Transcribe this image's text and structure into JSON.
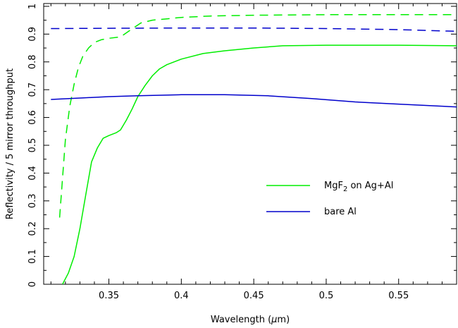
{
  "chart_data": {
    "type": "line",
    "title": "",
    "xlabel": "Wavelength (",
    "xlabel_mu": "μ",
    "xlabel_unit": "m)",
    "ylabel": "Reflectivity / 5 mirror throughput",
    "xlim": [
      0.305,
      0.59
    ],
    "ylim": [
      0,
      1.01
    ],
    "grid": false,
    "legend_position": "center-right",
    "x_ticks": [
      0.35,
      0.4,
      0.45,
      0.5,
      0.55
    ],
    "x_tick_labels": [
      "0.35",
      "0.4",
      "0.45",
      "0.5",
      "0.55"
    ],
    "y_ticks": [
      0,
      0.1,
      0.2,
      0.3,
      0.4,
      0.5,
      0.6,
      0.7,
      0.8,
      0.9,
      1
    ],
    "y_tick_labels": [
      "0",
      "0.1",
      "0.2",
      "0.3",
      "0.4",
      "0.5",
      "0.6",
      "0.7",
      "0.8",
      "0.9",
      "1"
    ],
    "legend": [
      {
        "main": "MgF",
        "sub": "2",
        "rest": " on Ag+Al",
        "color": "#00ee00"
      },
      {
        "main": "bare Al",
        "sub": "",
        "rest": "",
        "color": "#0000cc"
      }
    ],
    "series": [
      {
        "color": "#00ee00",
        "dash": true,
        "x": [
          0.316,
          0.318,
          0.32,
          0.323,
          0.326,
          0.329,
          0.332,
          0.336,
          0.34,
          0.345,
          0.35,
          0.358,
          0.365,
          0.372,
          0.38,
          0.39,
          0.4,
          0.42,
          0.45,
          0.5,
          0.55,
          0.59
        ],
        "y": [
          0.24,
          0.38,
          0.52,
          0.64,
          0.72,
          0.78,
          0.82,
          0.85,
          0.87,
          0.88,
          0.885,
          0.89,
          0.915,
          0.94,
          0.95,
          0.955,
          0.96,
          0.965,
          0.968,
          0.97,
          0.97,
          0.97
        ]
      },
      {
        "color": "#00ee00",
        "dash": false,
        "x": [
          0.318,
          0.322,
          0.326,
          0.33,
          0.334,
          0.338,
          0.342,
          0.346,
          0.35,
          0.355,
          0.358,
          0.362,
          0.366,
          0.37,
          0.375,
          0.38,
          0.385,
          0.39,
          0.4,
          0.415,
          0.43,
          0.45,
          0.47,
          0.5,
          0.55,
          0.59
        ],
        "y": [
          0.0,
          0.04,
          0.1,
          0.2,
          0.32,
          0.44,
          0.49,
          0.525,
          0.535,
          0.545,
          0.555,
          0.59,
          0.63,
          0.675,
          0.715,
          0.75,
          0.775,
          0.79,
          0.81,
          0.83,
          0.84,
          0.85,
          0.858,
          0.86,
          0.86,
          0.858
        ]
      },
      {
        "color": "#0000cc",
        "dash": true,
        "x": [
          0.31,
          0.35,
          0.4,
          0.45,
          0.5,
          0.55,
          0.59
        ],
        "y": [
          0.92,
          0.921,
          0.922,
          0.922,
          0.92,
          0.916,
          0.91
        ]
      },
      {
        "color": "#0000cc",
        "dash": false,
        "x": [
          0.31,
          0.33,
          0.35,
          0.37,
          0.4,
          0.43,
          0.46,
          0.49,
          0.52,
          0.55,
          0.59
        ],
        "y": [
          0.665,
          0.67,
          0.675,
          0.678,
          0.682,
          0.682,
          0.678,
          0.668,
          0.656,
          0.648,
          0.638
        ]
      }
    ]
  }
}
